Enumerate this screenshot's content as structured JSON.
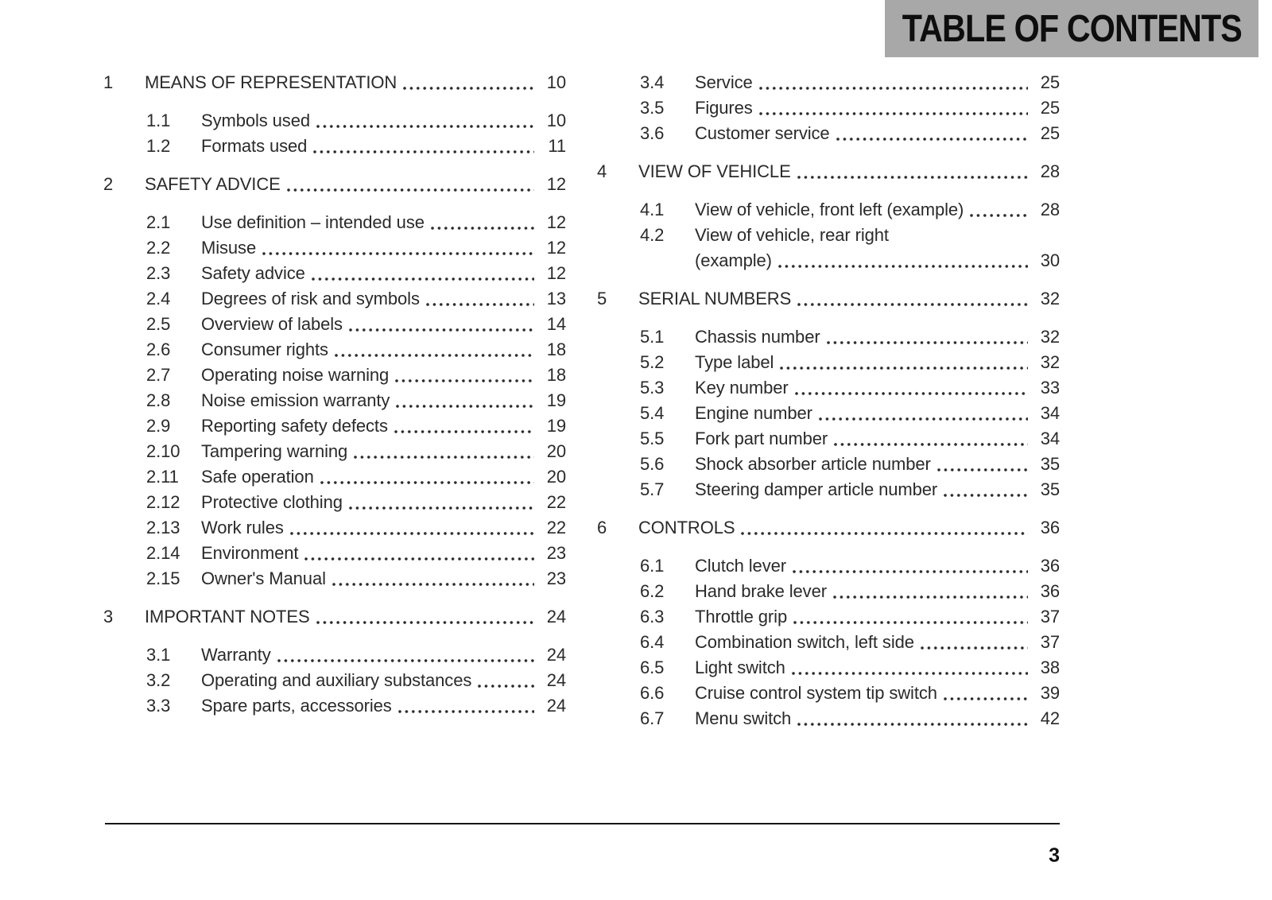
{
  "header": {
    "title": "TABLE OF CONTENTS"
  },
  "footer": {
    "page_number": "3"
  },
  "toc": {
    "left_column": [
      {
        "num": "1",
        "title": "MEANS OF REPRESENTATION",
        "page": "10",
        "level": "section"
      },
      {
        "num": "1.1",
        "title": "Symbols used",
        "page": "10",
        "level": "sub"
      },
      {
        "num": "1.2",
        "title": "Formats used",
        "page": "11",
        "level": "sub"
      },
      {
        "num": "2",
        "title": "SAFETY ADVICE",
        "page": "12",
        "level": "section"
      },
      {
        "num": "2.1",
        "title": "Use definition – intended use",
        "page": "12",
        "level": "sub"
      },
      {
        "num": "2.2",
        "title": "Misuse",
        "page": "12",
        "level": "sub"
      },
      {
        "num": "2.3",
        "title": "Safety advice",
        "page": "12",
        "level": "sub"
      },
      {
        "num": "2.4",
        "title": "Degrees of risk and symbols",
        "page": "13",
        "level": "sub"
      },
      {
        "num": "2.5",
        "title": "Overview of labels",
        "page": "14",
        "level": "sub"
      },
      {
        "num": "2.6",
        "title": "Consumer rights",
        "page": "18",
        "level": "sub"
      },
      {
        "num": "2.7",
        "title": "Operating noise warning",
        "page": "18",
        "level": "sub"
      },
      {
        "num": "2.8",
        "title": "Noise emission warranty",
        "page": "19",
        "level": "sub"
      },
      {
        "num": "2.9",
        "title": "Reporting safety defects",
        "page": "19",
        "level": "sub"
      },
      {
        "num": "2.10",
        "title": "Tampering warning",
        "page": "20",
        "level": "sub"
      },
      {
        "num": "2.11",
        "title": "Safe operation",
        "page": "20",
        "level": "sub"
      },
      {
        "num": "2.12",
        "title": "Protective clothing",
        "page": "22",
        "level": "sub"
      },
      {
        "num": "2.13",
        "title": "Work rules",
        "page": "22",
        "level": "sub"
      },
      {
        "num": "2.14",
        "title": "Environment",
        "page": "23",
        "level": "sub"
      },
      {
        "num": "2.15",
        "title": "Owner's Manual",
        "page": "23",
        "level": "sub"
      },
      {
        "num": "3",
        "title": "IMPORTANT NOTES",
        "page": "24",
        "level": "section"
      },
      {
        "num": "3.1",
        "title": "Warranty",
        "page": "24",
        "level": "sub"
      },
      {
        "num": "3.2",
        "title": "Operating and auxiliary substances",
        "page": "24",
        "level": "sub"
      },
      {
        "num": "3.3",
        "title": "Spare parts, accessories",
        "page": "24",
        "level": "sub"
      }
    ],
    "right_column": [
      {
        "num": "3.4",
        "title": "Service",
        "page": "25",
        "level": "sub"
      },
      {
        "num": "3.5",
        "title": "Figures",
        "page": "25",
        "level": "sub"
      },
      {
        "num": "3.6",
        "title": "Customer service",
        "page": "25",
        "level": "sub"
      },
      {
        "num": "4",
        "title": "VIEW OF VEHICLE",
        "page": "28",
        "level": "section"
      },
      {
        "num": "4.1",
        "title": "View of vehicle, front left (example)",
        "page": "28",
        "level": "sub"
      },
      {
        "num": "4.2",
        "title": "View of vehicle, rear right",
        "page": "",
        "level": "sub",
        "leader": false
      },
      {
        "num": "",
        "title": "(example)",
        "page": "30",
        "level": "sub"
      },
      {
        "num": "5",
        "title": "SERIAL NUMBERS",
        "page": "32",
        "level": "section"
      },
      {
        "num": "5.1",
        "title": "Chassis number",
        "page": "32",
        "level": "sub"
      },
      {
        "num": "5.2",
        "title": "Type label",
        "page": "32",
        "level": "sub"
      },
      {
        "num": "5.3",
        "title": "Key number",
        "page": "33",
        "level": "sub"
      },
      {
        "num": "5.4",
        "title": "Engine number",
        "page": "34",
        "level": "sub"
      },
      {
        "num": "5.5",
        "title": "Fork part number",
        "page": "34",
        "level": "sub"
      },
      {
        "num": "5.6",
        "title": "Shock absorber article number",
        "page": "35",
        "level": "sub"
      },
      {
        "num": "5.7",
        "title": "Steering damper article number",
        "page": "35",
        "level": "sub"
      },
      {
        "num": "6",
        "title": "CONTROLS",
        "page": "36",
        "level": "section"
      },
      {
        "num": "6.1",
        "title": "Clutch lever",
        "page": "36",
        "level": "sub"
      },
      {
        "num": "6.2",
        "title": "Hand brake lever",
        "page": "36",
        "level": "sub"
      },
      {
        "num": "6.3",
        "title": "Throttle grip",
        "page": "37",
        "level": "sub"
      },
      {
        "num": "6.4",
        "title": "Combination switch, left side",
        "page": "37",
        "level": "sub"
      },
      {
        "num": "6.5",
        "title": "Light switch",
        "page": "38",
        "level": "sub"
      },
      {
        "num": "6.6",
        "title": "Cruise control system tip switch",
        "page": "39",
        "level": "sub"
      },
      {
        "num": "6.7",
        "title": "Menu switch",
        "page": "42",
        "level": "sub"
      }
    ]
  },
  "colors": {
    "header_bar_bg": "#a8a8a8",
    "text": "#2a2a2a",
    "rule": "#161616"
  }
}
